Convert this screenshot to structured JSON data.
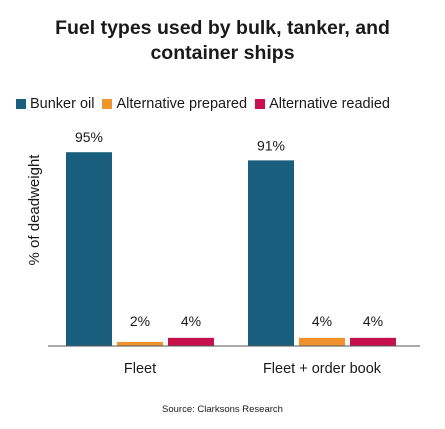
{
  "chart_data": {
    "type": "bar",
    "title_lines": [
      "Fuel types used by bulk, tanker, and",
      "container ships"
    ],
    "ylabel": "% of deadweight",
    "ylim": [
      0,
      100
    ],
    "grid": false,
    "legend_position": "top",
    "categories": [
      "Fleet",
      "Fleet + order book"
    ],
    "series": [
      {
        "name": "Bunker oil",
        "values": [
          95,
          91
        ],
        "labels": [
          "95%",
          "91%"
        ],
        "color": "#1a5e7e"
      },
      {
        "name": "Alternative prepared",
        "values": [
          2,
          4
        ],
        "labels": [
          "2%",
          "4%"
        ],
        "color": "#f0922e"
      },
      {
        "name": "Alternative readied",
        "values": [
          4,
          4
        ],
        "labels": [
          "4%",
          "4%"
        ],
        "color": "#c8104f"
      }
    ],
    "source": "Source: Clarksons Research"
  }
}
